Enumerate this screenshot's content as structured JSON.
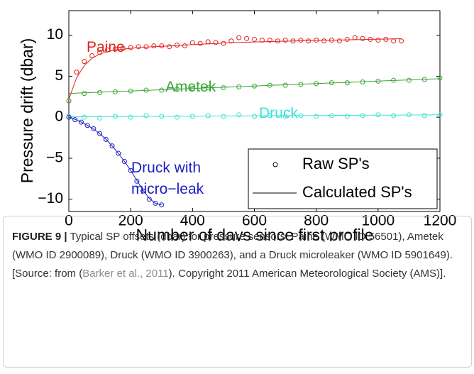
{
  "chart_data": {
    "type": "scatter_fit",
    "y_label": "Pressure drift (dbar)",
    "x_label": "Number of days since first profile",
    "xlim": [
      0,
      1200
    ],
    "xticks": [
      0,
      200,
      400,
      600,
      800,
      1000,
      1200
    ],
    "ylim": [
      -11.5,
      13
    ],
    "yticks": [
      {
        "value": -10,
        "label": "−10"
      },
      {
        "value": -5,
        "label": "−5"
      },
      0,
      5,
      10
    ],
    "legend": [
      "Raw SP's",
      "Calculated SP's"
    ],
    "legend_position": "lower right",
    "series": [
      {
        "name": "Paine",
        "color": "#e2211c",
        "x": [
          0,
          25,
          50,
          75,
          100,
          125,
          150,
          175,
          200,
          225,
          250,
          275,
          300,
          325,
          350,
          375,
          400,
          425,
          450,
          475,
          500,
          525,
          550,
          575,
          600,
          625,
          650,
          675,
          700,
          725,
          750,
          775,
          800,
          825,
          850,
          875,
          900,
          925,
          950,
          975,
          1000,
          1025,
          1050,
          1075
        ],
        "values": [
          2.0,
          5.5,
          6.8,
          7.5,
          7.9,
          8.2,
          8.3,
          8.4,
          8.5,
          8.6,
          8.6,
          8.7,
          8.7,
          8.6,
          8.8,
          8.7,
          9.1,
          9.0,
          9.2,
          9.1,
          9.0,
          9.3,
          9.7,
          9.6,
          9.5,
          9.4,
          9.4,
          9.3,
          9.4,
          9.3,
          9.4,
          9.3,
          9.4,
          9.3,
          9.4,
          9.3,
          9.5,
          9.7,
          9.6,
          9.5,
          9.4,
          9.5,
          9.3,
          9.3
        ],
        "fit": [
          2.2,
          4.8,
          6.3,
          7.2,
          7.7,
          8.0,
          8.2,
          8.3,
          8.4,
          8.5,
          8.55,
          8.6,
          8.65,
          8.7,
          8.75,
          8.8,
          8.85,
          8.9,
          8.95,
          9.0,
          9.05,
          9.1,
          9.12,
          9.15,
          9.18,
          9.2,
          9.23,
          9.26,
          9.28,
          9.3,
          9.32,
          9.34,
          9.36,
          9.38,
          9.4,
          9.42,
          9.44,
          9.46,
          9.48,
          9.5,
          9.52,
          9.54,
          9.56,
          9.58
        ]
      },
      {
        "name": "Ametek",
        "color": "#3aa535",
        "x": [
          0,
          50,
          100,
          150,
          200,
          250,
          300,
          350,
          400,
          450,
          500,
          550,
          600,
          650,
          700,
          750,
          800,
          850,
          900,
          950,
          1000,
          1050,
          1100,
          1150,
          1200
        ],
        "values": [
          2.0,
          2.9,
          3.0,
          3.1,
          3.2,
          3.3,
          3.3,
          3.4,
          3.5,
          3.6,
          3.6,
          3.7,
          3.8,
          3.9,
          3.9,
          4.0,
          4.1,
          4.2,
          4.2,
          4.3,
          4.4,
          4.5,
          4.5,
          4.6,
          4.8
        ],
        "fit": [
          2.9,
          2.98,
          3.05,
          3.13,
          3.2,
          3.28,
          3.35,
          3.43,
          3.5,
          3.58,
          3.65,
          3.73,
          3.8,
          3.88,
          3.95,
          4.03,
          4.1,
          4.18,
          4.25,
          4.33,
          4.4,
          4.48,
          4.55,
          4.63,
          4.7
        ]
      },
      {
        "name": "Druck",
        "color": "#3ee0dc",
        "x": [
          0,
          50,
          100,
          150,
          200,
          250,
          300,
          350,
          400,
          450,
          500,
          550,
          600,
          650,
          700,
          750,
          800,
          850,
          900,
          950,
          1000,
          1050,
          1100,
          1150,
          1200
        ],
        "values": [
          0.1,
          0.0,
          -0.1,
          0.1,
          0.0,
          0.2,
          0.1,
          0.0,
          0.1,
          0.2,
          0.1,
          0.3,
          0.1,
          0.2,
          0.1,
          0.2,
          0.1,
          0.2,
          0.1,
          0.2,
          0.3,
          0.2,
          0.3,
          0.2,
          0.3
        ],
        "fit": [
          0.05,
          0.06,
          0.07,
          0.08,
          0.09,
          0.1,
          0.11,
          0.12,
          0.13,
          0.14,
          0.15,
          0.16,
          0.17,
          0.18,
          0.19,
          0.2,
          0.21,
          0.22,
          0.23,
          0.24,
          0.25,
          0.26,
          0.27,
          0.28,
          0.29
        ]
      },
      {
        "name": "Druck with micro−leak",
        "color": "#1b1fc4",
        "x": [
          0,
          20,
          40,
          60,
          80,
          100,
          120,
          140,
          160,
          180,
          200,
          220,
          240,
          260,
          280,
          300
        ],
        "values": [
          0,
          -0.3,
          -0.6,
          -1.0,
          -1.4,
          -2.0,
          -2.7,
          -3.5,
          -4.4,
          -5.4,
          -6.5,
          -7.8,
          -9.0,
          -10.0,
          -10.5,
          -10.7
        ],
        "fit": [
          0,
          -0.25,
          -0.6,
          -1.0,
          -1.45,
          -2.0,
          -2.7,
          -3.5,
          -4.4,
          -5.4,
          -6.5,
          -7.7,
          -8.9,
          -9.9,
          -10.5,
          -10.7
        ]
      }
    ]
  },
  "caption": {
    "label": "FIGURE 9 |",
    "text_before": "Typical SP offsets (dbar) for pressure sensors: Paine (WMO ID 56501), Ametek (WMO ID 2900089), Druck (WMO ID 3900263), and a Druck microleaker (WMO ID 5901649). [Source: from (",
    "citation": "Barker et al., 2011",
    "text_after": "). Copyright 2011 American Meteorological Society (AMS)]."
  }
}
